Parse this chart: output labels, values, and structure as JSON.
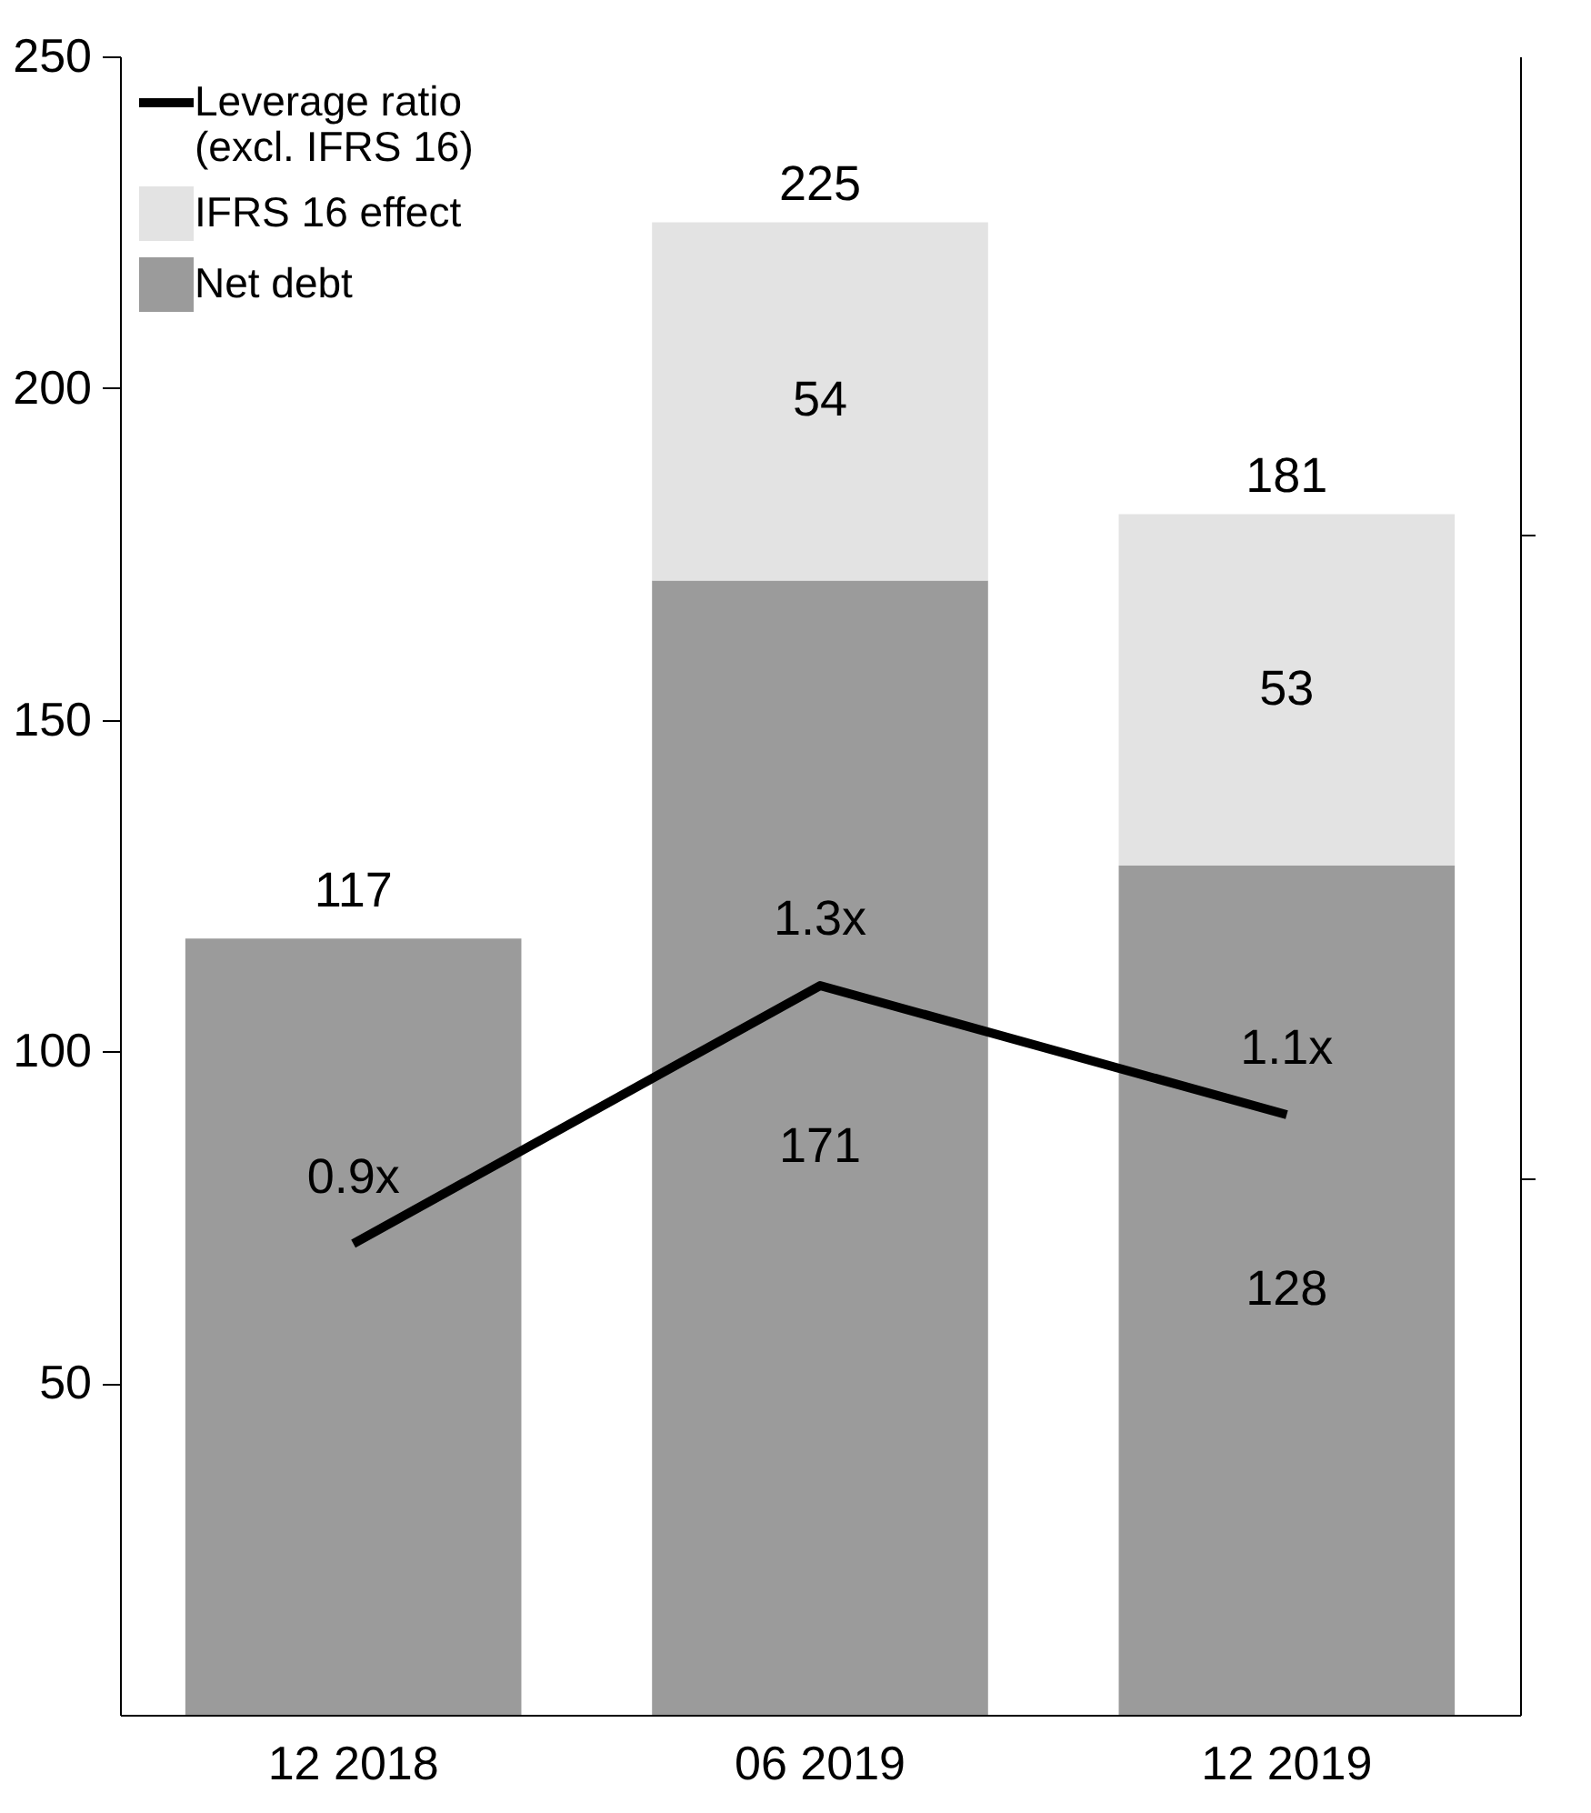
{
  "chart_data": {
    "type": "bar",
    "stacked": true,
    "categories": [
      "12 2018",
      "06 2019",
      "12 2019"
    ],
    "series": [
      {
        "name": "Net debt",
        "color": "#9b9b9b",
        "values": [
          117,
          171,
          128
        ],
        "value_labels": [
          "117",
          "171",
          "128"
        ]
      },
      {
        "name": "IFRS 16 effect",
        "color": "#e3e3e3",
        "values": [
          null,
          54,
          53
        ],
        "value_labels": [
          null,
          "54",
          "53"
        ]
      },
      {
        "name": "Leverage ratio\n(excl. IFRS 16)",
        "type": "line",
        "axis": "y2",
        "color": "#000000",
        "values": [
          0.9,
          1.3,
          1.1
        ],
        "value_labels": [
          "0.9x",
          "1.3x",
          "1.1x"
        ]
      }
    ],
    "totals": [
      null,
      "225",
      "181"
    ],
    "ylim": [
      0,
      250
    ],
    "yticks": [
      50,
      100,
      150,
      200,
      250
    ],
    "y2lim": [
      0.17,
      2.74
    ],
    "legend": "top left",
    "grid": false,
    "marker": "none",
    "line_style": "solid"
  }
}
